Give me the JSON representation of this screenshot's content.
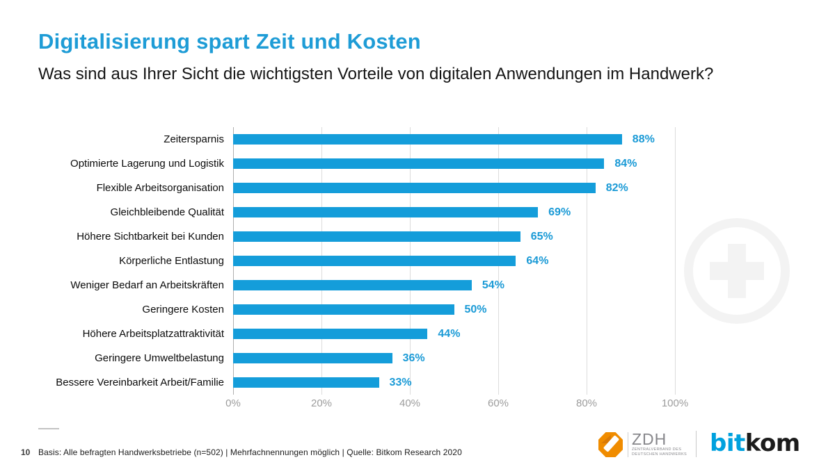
{
  "slide": {
    "title": "Digitalisierung spart Zeit und Kosten",
    "subtitle": "Was sind aus Ihrer Sicht die wichtigsten Vorteile von digitalen Anwendungen im Handwerk?",
    "page_number": "10",
    "footnote": "Basis: Alle befragten Handwerksbetriebe (n=502) | Mehrfachnennungen möglich | Quelle: Bitkom Research 2020"
  },
  "chart_data": {
    "type": "bar",
    "orientation": "horizontal",
    "title": "Digitalisierung spart Zeit und Kosten",
    "subtitle": "Was sind aus Ihrer Sicht die wichtigsten Vorteile von digitalen Anwendungen im Handwerk?",
    "categories": [
      "Zeitersparnis",
      "Optimierte Lagerung und Logistik",
      "Flexible Arbeitsorganisation",
      "Gleichbleibende Qualität",
      "Höhere Sichtbarkeit bei Kunden",
      "Körperliche Entlastung",
      "Weniger Bedarf an Arbeitskräften",
      "Geringere Kosten",
      "Höhere Arbeitsplatzattraktivität",
      "Geringere Umweltbelastung",
      "Bessere Vereinbarkeit Arbeit/Familie"
    ],
    "values": [
      88,
      84,
      82,
      69,
      65,
      64,
      54,
      50,
      44,
      36,
      33
    ],
    "value_suffix": "%",
    "x_ticks": [
      "0%",
      "20%",
      "40%",
      "60%",
      "80%",
      "100%"
    ],
    "xlim": [
      0,
      100
    ],
    "grid": true,
    "legend": "none",
    "bar_color": "#149dda",
    "value_label_color": "#1a9ad6"
  },
  "watermark": {
    "icon": "plus-circle-watermark"
  },
  "logos": {
    "zdh": {
      "abbr": "ZDH",
      "line1": "ZENTRALVERBAND DES",
      "line2": "DEUTSCHEN HANDWERKS",
      "emblem_color": "#f08c00"
    },
    "bitkom": {
      "part1": "bit",
      "part2": "kom",
      "part1_color": "#00a1de",
      "part2_color": "#1c1c1c"
    }
  },
  "colors": {
    "title_blue": "#1e9cd6",
    "bar_blue": "#149dda",
    "gridline": "#dcdcdc",
    "tick_gray": "#9c9c9c",
    "background": "#ffffff"
  }
}
